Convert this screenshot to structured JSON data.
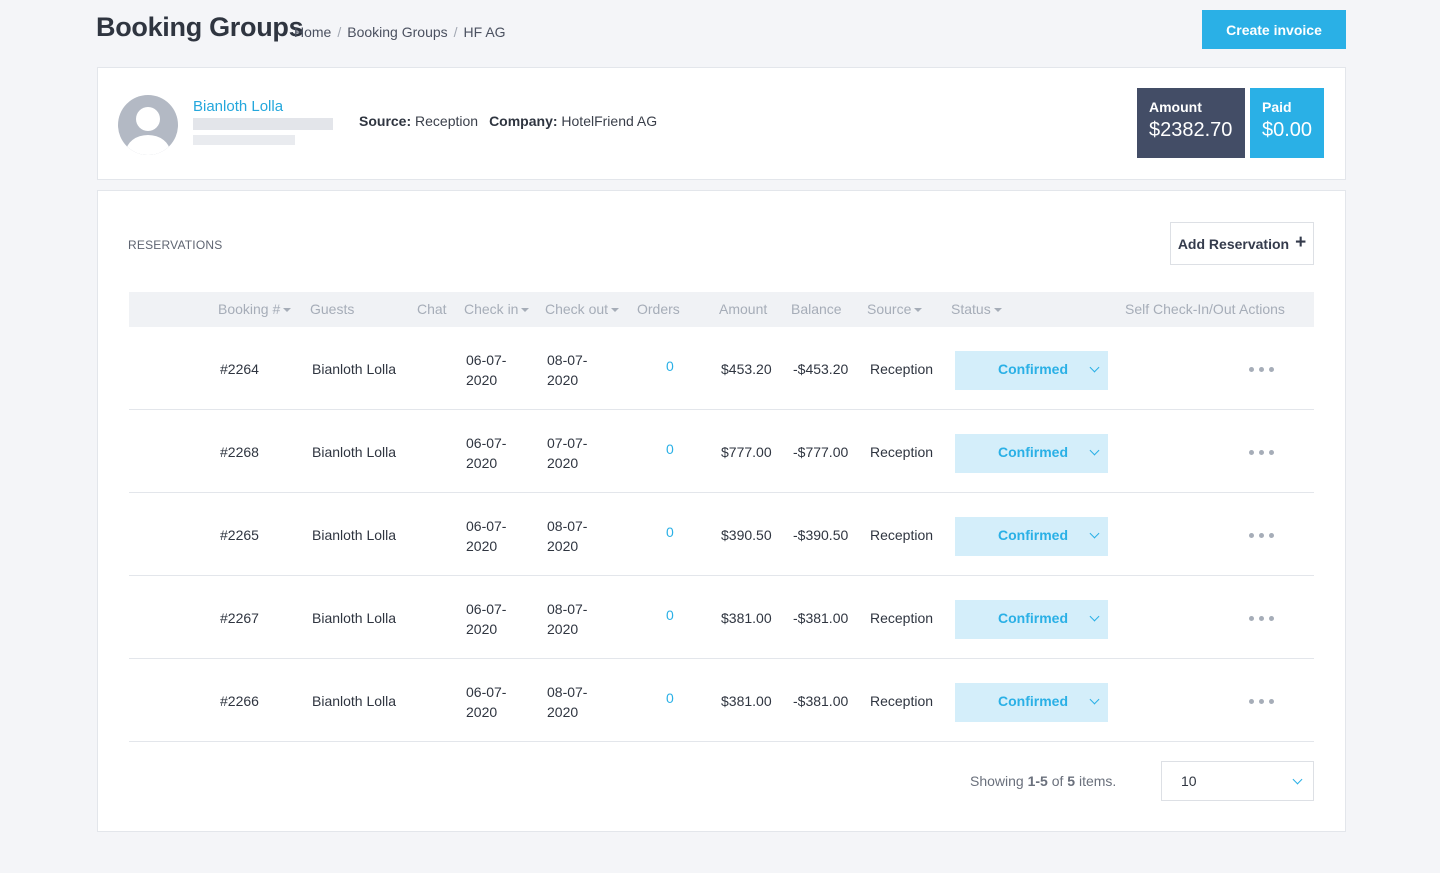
{
  "header": {
    "title": "Booking Groups",
    "breadcrumb": [
      "Home",
      "Booking Groups",
      "HF AG"
    ],
    "create_invoice_label": "Create invoice"
  },
  "profile": {
    "name": "Bianloth Lolla",
    "source_label": "Source:",
    "source_value": "Reception",
    "company_label": "Company:",
    "company_value": "HotelFriend AG",
    "amount_label": "Amount",
    "amount_value": "$2382.70",
    "paid_label": "Paid",
    "paid_value": "$0.00"
  },
  "reservations": {
    "title": "RESERVATIONS",
    "add_label": "Add Reservation",
    "add_icon": "plus-icon",
    "columns": [
      "Booking #",
      "Guests",
      "Chat",
      "Check in",
      "Check out",
      "Orders",
      "Amount",
      "Balance",
      "Source",
      "Status",
      "Self Check-In/Out",
      "Actions"
    ],
    "rows": [
      {
        "booking": "#2264",
        "guest": "Bianloth Lolla",
        "checkin": [
          "06-07-",
          "2020"
        ],
        "checkout": [
          "08-07-",
          "2020"
        ],
        "orders": "0",
        "amount": "$453.20",
        "balance": "-$453.20",
        "source": "Reception",
        "status": "Confirmed"
      },
      {
        "booking": "#2268",
        "guest": "Bianloth Lolla",
        "checkin": [
          "06-07-",
          "2020"
        ],
        "checkout": [
          "07-07-",
          "2020"
        ],
        "orders": "0",
        "amount": "$777.00",
        "balance": "-$777.00",
        "source": "Reception",
        "status": "Confirmed"
      },
      {
        "booking": "#2265",
        "guest": "Bianloth Lolla",
        "checkin": [
          "06-07-",
          "2020"
        ],
        "checkout": [
          "08-07-",
          "2020"
        ],
        "orders": "0",
        "amount": "$390.50",
        "balance": "-$390.50",
        "source": "Reception",
        "status": "Confirmed"
      },
      {
        "booking": "#2267",
        "guest": "Bianloth Lolla",
        "checkin": [
          "06-07-",
          "2020"
        ],
        "checkout": [
          "08-07-",
          "2020"
        ],
        "orders": "0",
        "amount": "$381.00",
        "balance": "-$381.00",
        "source": "Reception",
        "status": "Confirmed"
      },
      {
        "booking": "#2266",
        "guest": "Bianloth Lolla",
        "checkin": [
          "06-07-",
          "2020"
        ],
        "checkout": [
          "08-07-",
          "2020"
        ],
        "orders": "0",
        "amount": "$381.00",
        "balance": "-$381.00",
        "source": "Reception",
        "status": "Confirmed"
      }
    ]
  },
  "pagination": {
    "showing_prefix": "Showing",
    "range": "1-5",
    "of_word": "of",
    "total": "5",
    "items_word": "items.",
    "per_page": "10"
  },
  "colors": {
    "accent": "#2ab0e6",
    "amount_bg": "#434d66",
    "status_bg": "#d4eefa"
  }
}
